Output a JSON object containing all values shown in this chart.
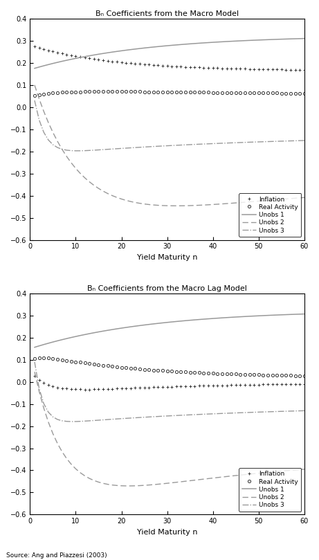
{
  "title1": "Bₙ Coefficients from the Macro Model",
  "title2": "Bₙ Coefficients from the Macro Lag Model",
  "xlabel": "Yield Maturity n",
  "xlim": [
    0,
    60
  ],
  "ylim": [
    -0.6,
    0.4
  ],
  "yticks": [
    -0.6,
    -0.5,
    -0.4,
    -0.3,
    -0.2,
    -0.1,
    0.0,
    0.1,
    0.2,
    0.3,
    0.4
  ],
  "xticks": [
    0,
    10,
    20,
    30,
    40,
    50,
    60
  ],
  "source_note": "Source: Ang and Piazzesi (2003)",
  "gray_line": "#999999",
  "gray_dark": "#333333",
  "gray_marker": "#444444"
}
